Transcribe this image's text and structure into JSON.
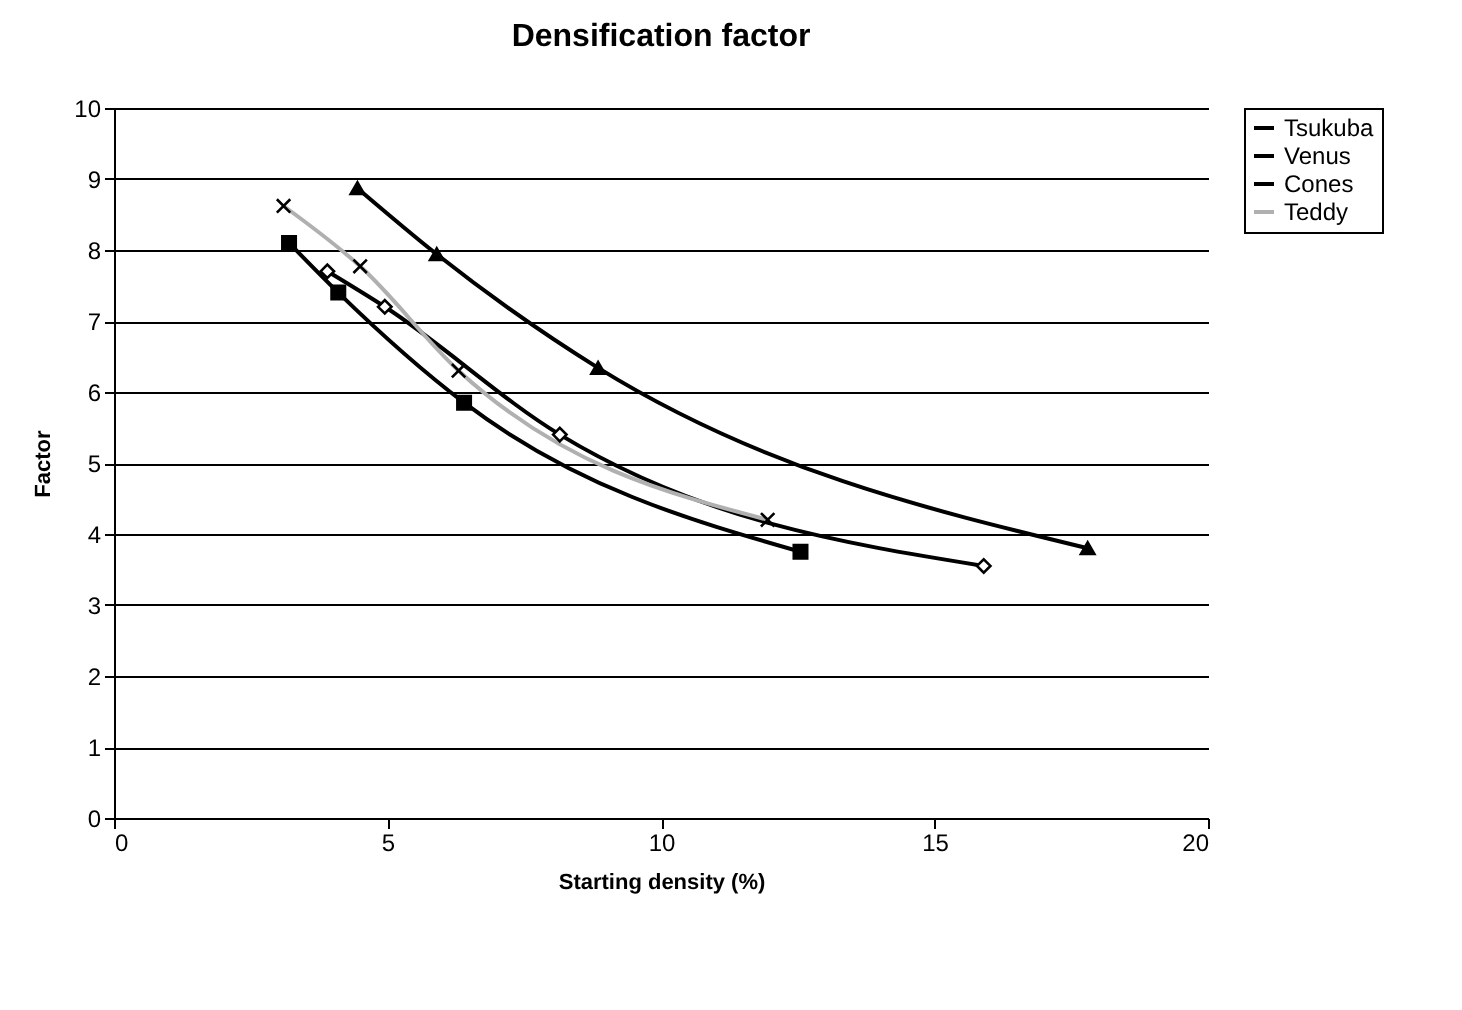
{
  "chart_data": {
    "type": "line",
    "title": "Densification factor",
    "xlabel": "Starting density (%)",
    "ylabel": "Factor",
    "xlim": [
      0,
      20
    ],
    "xticks": [
      0,
      5,
      10,
      15,
      20
    ],
    "ylim": [
      0,
      10
    ],
    "yticks": [
      0,
      1,
      2,
      3,
      4,
      5,
      6,
      7,
      8,
      9,
      10
    ],
    "grid": "y",
    "legend": "right",
    "series": [
      {
        "name": "Tsukuba",
        "color": "#000000",
        "marker": "diamond",
        "x": [
          3.9,
          4.95,
          8.15,
          15.9
        ],
        "values": [
          7.7,
          7.2,
          5.4,
          3.55
        ]
      },
      {
        "name": "Venus",
        "color": "#000000",
        "marker": "square",
        "x": [
          3.2,
          4.1,
          6.4,
          12.55
        ],
        "values": [
          8.1,
          7.4,
          5.85,
          3.75
        ]
      },
      {
        "name": "Cones",
        "color": "#000000",
        "marker": "triangle",
        "x": [
          4.45,
          5.9,
          8.85,
          17.8
        ],
        "values": [
          8.87,
          7.94,
          6.34,
          3.8
        ]
      },
      {
        "name": "Teddy",
        "color": "#b0b0b0",
        "marker": "cross",
        "x": [
          3.1,
          4.5,
          6.3,
          11.95
        ],
        "values": [
          8.62,
          7.77,
          6.3,
          4.2
        ]
      }
    ]
  }
}
